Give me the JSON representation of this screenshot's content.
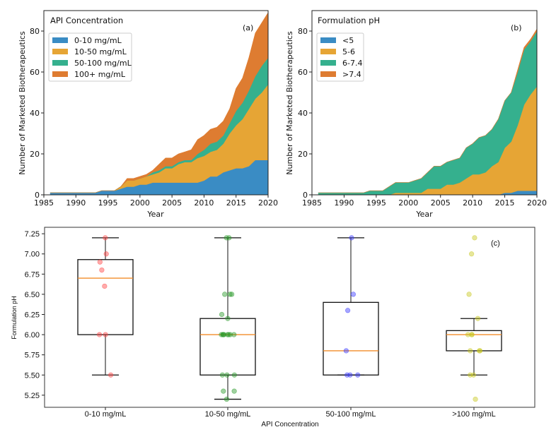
{
  "chart_data": [
    {
      "id": "a",
      "type": "area",
      "stacked": true,
      "panel_label": "(a)",
      "legend_title": "API Concentration",
      "legend_position": "upper-left",
      "xlabel": "Year",
      "ylabel": "Number of Marketed Biotherapeutics",
      "xlim": [
        1985,
        2020
      ],
      "ylim": [
        0,
        90
      ],
      "xticks": [
        1985,
        1990,
        1995,
        2000,
        2005,
        2010,
        2015,
        2020
      ],
      "yticks": [
        0,
        20,
        40,
        60,
        80
      ],
      "x": [
        1986,
        1987,
        1988,
        1989,
        1990,
        1991,
        1992,
        1993,
        1994,
        1995,
        1996,
        1997,
        1998,
        1999,
        2000,
        2001,
        2002,
        2003,
        2004,
        2005,
        2006,
        2007,
        2008,
        2009,
        2010,
        2011,
        2012,
        2013,
        2014,
        2015,
        2016,
        2017,
        2018,
        2019,
        2020
      ],
      "series": [
        {
          "name": "0-10 mg/mL",
          "color": "#3a8cc4",
          "values": [
            1,
            1,
            1,
            1,
            1,
            1,
            1,
            1,
            2,
            2,
            2,
            3,
            4,
            4,
            5,
            5,
            6,
            6,
            6,
            6,
            6,
            6,
            6,
            6,
            7,
            9,
            9,
            11,
            12,
            13,
            13,
            14,
            17,
            17,
            17
          ]
        },
        {
          "name": "10-50 mg/mL",
          "color": "#e6a535",
          "values": [
            0,
            0,
            0,
            0,
            0,
            0,
            0,
            0,
            0,
            0,
            0,
            1,
            3,
            3,
            3,
            4,
            4,
            5,
            7,
            7,
            9,
            10,
            10,
            12,
            12,
            12,
            13,
            14,
            18,
            21,
            24,
            28,
            30,
            33,
            37
          ]
        },
        {
          "name": "50-100 mg/mL",
          "color": "#35b08e",
          "values": [
            0,
            0,
            0,
            0,
            0,
            0,
            0,
            0,
            0,
            0,
            0,
            0,
            0,
            0,
            0,
            0,
            1,
            1,
            1,
            1,
            1,
            1,
            1,
            2,
            3,
            4,
            4,
            4,
            5,
            7,
            8,
            9,
            11,
            13,
            13
          ]
        },
        {
          "name": "100+ mg/mL",
          "color": "#de7c31",
          "values": [
            0,
            0,
            0,
            0,
            0,
            0,
            0,
            0,
            0,
            0,
            0,
            0,
            1,
            1,
            1,
            1,
            1,
            3,
            4,
            4,
            4,
            4,
            5,
            7,
            7,
            7,
            7,
            7,
            7,
            11,
            12,
            16,
            21,
            21,
            22
          ]
        }
      ]
    },
    {
      "id": "b",
      "type": "area",
      "stacked": true,
      "panel_label": "(b)",
      "legend_title": "Formulation pH",
      "legend_position": "upper-left",
      "xlabel": "Year",
      "ylabel": "Number of Marketed Biotherapeutics",
      "xlim": [
        1985,
        2020
      ],
      "ylim": [
        0,
        90
      ],
      "xticks": [
        1985,
        1990,
        1995,
        2000,
        2005,
        2010,
        2015,
        2020
      ],
      "yticks": [
        0,
        20,
        40,
        60,
        80
      ],
      "x": [
        1986,
        1987,
        1988,
        1989,
        1990,
        1991,
        1992,
        1993,
        1994,
        1995,
        1996,
        1997,
        1998,
        1999,
        2000,
        2001,
        2002,
        2003,
        2004,
        2005,
        2006,
        2007,
        2008,
        2009,
        2010,
        2011,
        2012,
        2013,
        2014,
        2015,
        2016,
        2017,
        2018,
        2019,
        2020
      ],
      "series": [
        {
          "name": "<5",
          "color": "#3a8cc4",
          "values": [
            0,
            0,
            0,
            0,
            0,
            0,
            0,
            0,
            0,
            0,
            0,
            0,
            0,
            0,
            0,
            0,
            0,
            0,
            0,
            0,
            0,
            0,
            0,
            0,
            0,
            0,
            0,
            0,
            0,
            1,
            1,
            2,
            2,
            2,
            2
          ]
        },
        {
          "name": "5-6",
          "color": "#e6a535",
          "values": [
            0,
            0,
            0,
            0,
            0,
            0,
            0,
            0,
            0,
            0,
            0,
            0,
            1,
            1,
            1,
            1,
            1,
            3,
            3,
            3,
            5,
            5,
            6,
            8,
            10,
            10,
            11,
            14,
            16,
            22,
            25,
            32,
            42,
            47,
            51
          ]
        },
        {
          "name": "6-7.4",
          "color": "#35b08e",
          "values": [
            1,
            1,
            1,
            1,
            1,
            1,
            1,
            1,
            2,
            2,
            2,
            4,
            5,
            5,
            5,
            6,
            7,
            8,
            11,
            11,
            11,
            12,
            12,
            15,
            15,
            18,
            18,
            18,
            21,
            23,
            24,
            26,
            27,
            26,
            27
          ]
        },
        {
          "name": ">7.4",
          "color": "#de7c31",
          "values": [
            0,
            0,
            0,
            0,
            0,
            0,
            0,
            0,
            0,
            0,
            0,
            0,
            0,
            0,
            0,
            0,
            0,
            0,
            0,
            0,
            0,
            0,
            0,
            0,
            0,
            0,
            0,
            0,
            0,
            0,
            0,
            1,
            1,
            1,
            1
          ]
        }
      ]
    },
    {
      "id": "c",
      "type": "box",
      "panel_label": "(c)",
      "xlabel": "API Concentration",
      "ylabel": "Formulation pH",
      "ylim": [
        5.1,
        7.33
      ],
      "yticks": [
        "5.25",
        "5.50",
        "5.75",
        "6.00",
        "6.25",
        "6.50",
        "6.75",
        "7.00",
        "7.25"
      ],
      "median_color": "#f28c28",
      "categories": [
        "0-10 mg/mL",
        "10-50 mg/mL",
        "50-100 mg/mL",
        ">100 mg/mL"
      ],
      "boxes": [
        {
          "whisker_low": 5.5,
          "q1": 6.0,
          "median": 6.7,
          "q3": 6.93,
          "whisker_high": 7.2,
          "point_color": "#ff4444",
          "points": [
            7.2,
            7.0,
            6.9,
            6.8,
            6.6,
            6.0,
            6.0,
            5.5
          ]
        },
        {
          "whisker_low": 5.2,
          "q1": 5.5,
          "median": 6.0,
          "q3": 6.2,
          "whisker_high": 7.2,
          "point_color": "#2a9a2a",
          "points": [
            7.2,
            7.2,
            6.5,
            6.5,
            6.5,
            6.25,
            6.2,
            6.0,
            6.0,
            6.0,
            6.0,
            6.0,
            6.0,
            6.0,
            6.0,
            5.5,
            5.5,
            5.5,
            5.3,
            5.3,
            5.2
          ]
        },
        {
          "whisker_low": 5.5,
          "q1": 5.5,
          "median": 5.8,
          "q3": 6.4,
          "whisker_high": 7.2,
          "point_color": "#3a3aff",
          "points": [
            7.2,
            6.5,
            6.3,
            5.8,
            5.5,
            5.5,
            5.5
          ]
        },
        {
          "whisker_low": 5.5,
          "q1": 5.8,
          "median": 6.0,
          "q3": 6.05,
          "whisker_high": 6.2,
          "point_color": "#c8c81e",
          "points": [
            7.2,
            7.0,
            6.5,
            6.2,
            6.0,
            6.0,
            6.0,
            5.8,
            5.8,
            5.8,
            5.5,
            5.5,
            5.2
          ]
        }
      ]
    }
  ]
}
